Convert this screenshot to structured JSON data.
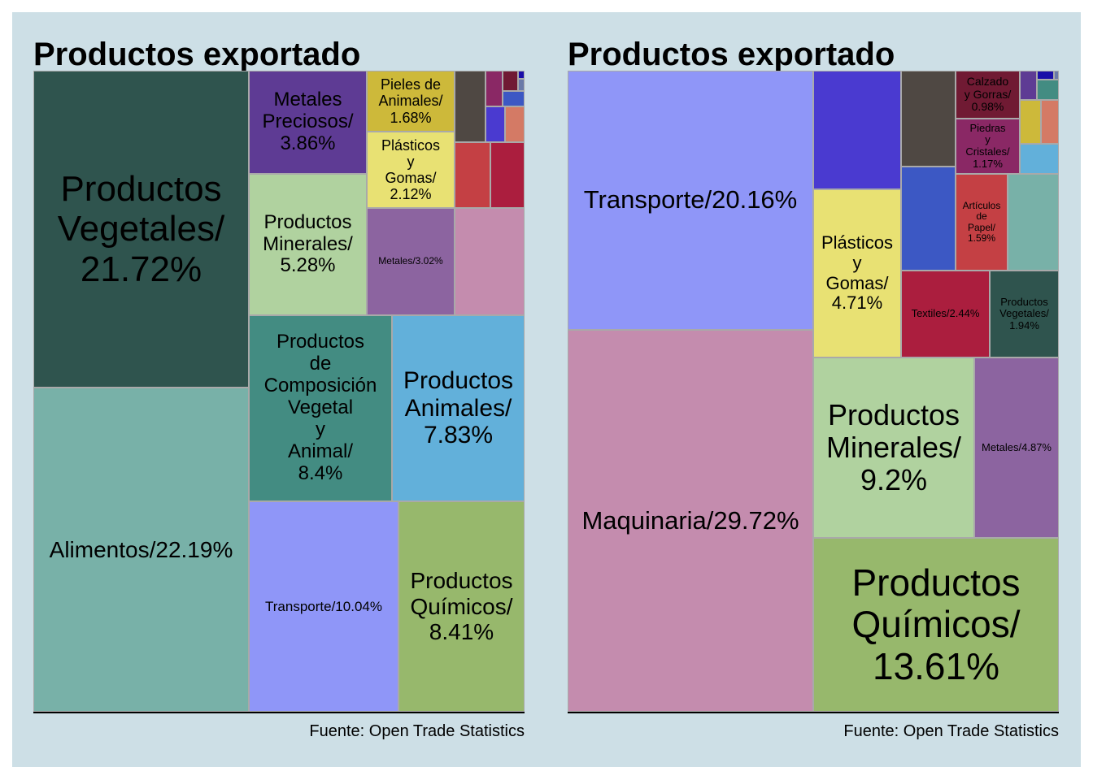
{
  "charts_title": "Productos exportado",
  "chart_data": [
    {
      "type": "treemap",
      "title": "Productos exportado",
      "source": "Fuente: Open Trade Statistics",
      "tiles": [
        {
          "label": "Alimentos",
          "value": 22.19,
          "display": "Alimentos/22.19%",
          "color": "#78b1a8"
        },
        {
          "label": "Productos Vegetales",
          "value": 21.72,
          "display": "Productos\nVegetales/\n21.72%",
          "color": "#2f544e"
        },
        {
          "label": "Transporte",
          "value": 10.04,
          "display": "Transporte/10.04%",
          "color": "#8f96f8"
        },
        {
          "label": "Productos Químicos",
          "value": 8.41,
          "display": "Productos\nQuímicos/\n8.41%",
          "color": "#97b86c"
        },
        {
          "label": "Productos de Composición Vegetal y Animal",
          "value": 8.4,
          "display": "Productos\nde\nComposición\nVegetal\ny\nAnimal/\n8.4%",
          "color": "#438c82"
        },
        {
          "label": "Productos Animales",
          "value": 7.83,
          "display": "Productos\nAnimales/\n7.83%",
          "color": "#62b0da"
        },
        {
          "label": "Productos Minerales",
          "value": 5.28,
          "display": "Productos\nMinerales/\n5.28%",
          "color": "#b0d29f"
        },
        {
          "label": "Metales Preciosos",
          "value": 3.86,
          "display": "Metales\nPreciosos/\n3.86%",
          "color": "#5e3b94"
        },
        {
          "label": "Metales",
          "value": 3.02,
          "display": "Metales/3.02%",
          "color": "#8c64a0"
        },
        {
          "label": "Plásticos y Gomas",
          "value": 2.12,
          "display": "Plásticos\ny\nGomas/\n2.12%",
          "color": "#e8e173"
        },
        {
          "label": "Pieles de Animales",
          "value": 1.68,
          "display": "Pieles de\nAnimales/\n1.68%",
          "color": "#cdb93a"
        }
      ]
    },
    {
      "type": "treemap",
      "title": "Productos exportado",
      "source": "Fuente: Open Trade Statistics",
      "tiles": [
        {
          "label": "Maquinaria",
          "value": 29.72,
          "display": "Maquinaria/29.72%",
          "color": "#c48cae"
        },
        {
          "label": "Transporte",
          "value": 20.16,
          "display": "Transporte/20.16%",
          "color": "#8f96f8"
        },
        {
          "label": "Productos Químicos",
          "value": 13.61,
          "display": "Productos\nQuímicos/\n13.61%",
          "color": "#97b86c"
        },
        {
          "label": "Productos Minerales",
          "value": 9.2,
          "display": "Productos\nMinerales/\n9.2%",
          "color": "#b0d29f"
        },
        {
          "label": "Metales",
          "value": 4.87,
          "display": "Metales/4.87%",
          "color": "#8c64a0"
        },
        {
          "label": "Plásticos y Gomas",
          "value": 4.71,
          "display": "Plásticos\ny\nGomas/\n4.71%",
          "color": "#e8e173"
        },
        {
          "label": "Textiles",
          "value": 2.44,
          "display": "Textiles/2.44%",
          "color": "#ab1e3e"
        },
        {
          "label": "Productos Vegetales",
          "value": 1.94,
          "display": "Productos\nVegetales/\n1.94%",
          "color": "#2f544e"
        },
        {
          "label": "Artículos de Papel",
          "value": 1.59,
          "display": "Artículos\nde\nPapel/\n1.59%",
          "color": "#c44044"
        },
        {
          "label": "Piedras y Cristales",
          "value": 1.17,
          "display": "Piedras\ny\nCristales/\n1.17%",
          "color": "#8a2865"
        },
        {
          "label": "Calzado y Gorras",
          "value": 0.98,
          "display": "Calzado\ny Gorras/\n0.98%",
          "color": "#701a33"
        }
      ]
    }
  ]
}
